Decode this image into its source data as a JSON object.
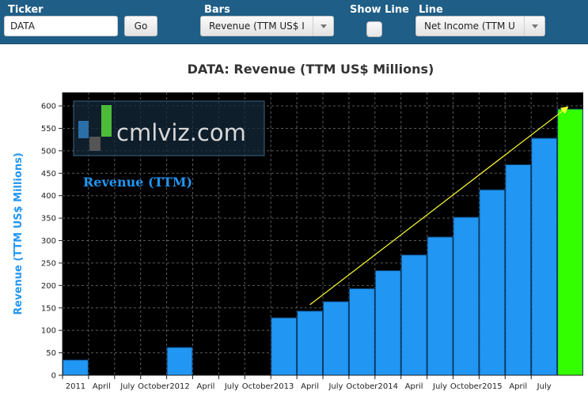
{
  "toolbar": {
    "ticker_label": "Ticker",
    "ticker_value": "DATA",
    "go_label": "Go",
    "bars_label": "Bars",
    "bars_selected": "Revenue (TTM US$ I",
    "show_line_label": "Show Line",
    "show_line_checked": false,
    "line_label": "Line",
    "line_selected": "Net Income (TTM U"
  },
  "logo": {
    "text": "cmlviz.com"
  },
  "colors": {
    "toolbar_bg": "#1f5e86",
    "plot_bg": "#000000",
    "bar": "#2196f3",
    "bar_highlight": "#33ff00",
    "trend_arrow": "#ffff33",
    "axis_label": "#2196f3"
  },
  "chart_data": {
    "type": "bar",
    "title": "DATA: Revenue (TTM US$ Millions)",
    "ylabel": "Revenue (TTM US$ Millions)",
    "xlabel": "",
    "series_label": "Revenue (TTM)",
    "ylim": [
      0,
      630
    ],
    "yticks": [
      0,
      50,
      100,
      150,
      200,
      250,
      300,
      350,
      400,
      450,
      500,
      550,
      600
    ],
    "x_tick_labels": [
      "2011",
      "April",
      "July",
      "October",
      "2012",
      "April",
      "July",
      "October",
      "2013",
      "April",
      "July",
      "October",
      "2014",
      "April",
      "July",
      "October",
      "2015",
      "April",
      "July"
    ],
    "categories": [
      "2011",
      "April 2011",
      "July 2011",
      "October 2011",
      "2012",
      "April 2012",
      "July 2012",
      "October 2012",
      "2013",
      "April 2013",
      "July 2013",
      "October 2013",
      "2014",
      "April 2014",
      "July 2014",
      "October 2014",
      "2015",
      "April 2015",
      "July 2015",
      "October 2015"
    ],
    "values": [
      34,
      0,
      0,
      0,
      62,
      0,
      0,
      0,
      128,
      143,
      164,
      193,
      233,
      268,
      308,
      352,
      413,
      469,
      528,
      593
    ],
    "highlight_index": 19,
    "grid": true,
    "trend_arrow": {
      "from": [
        9,
        157
      ],
      "to": [
        19,
        600
      ]
    }
  }
}
